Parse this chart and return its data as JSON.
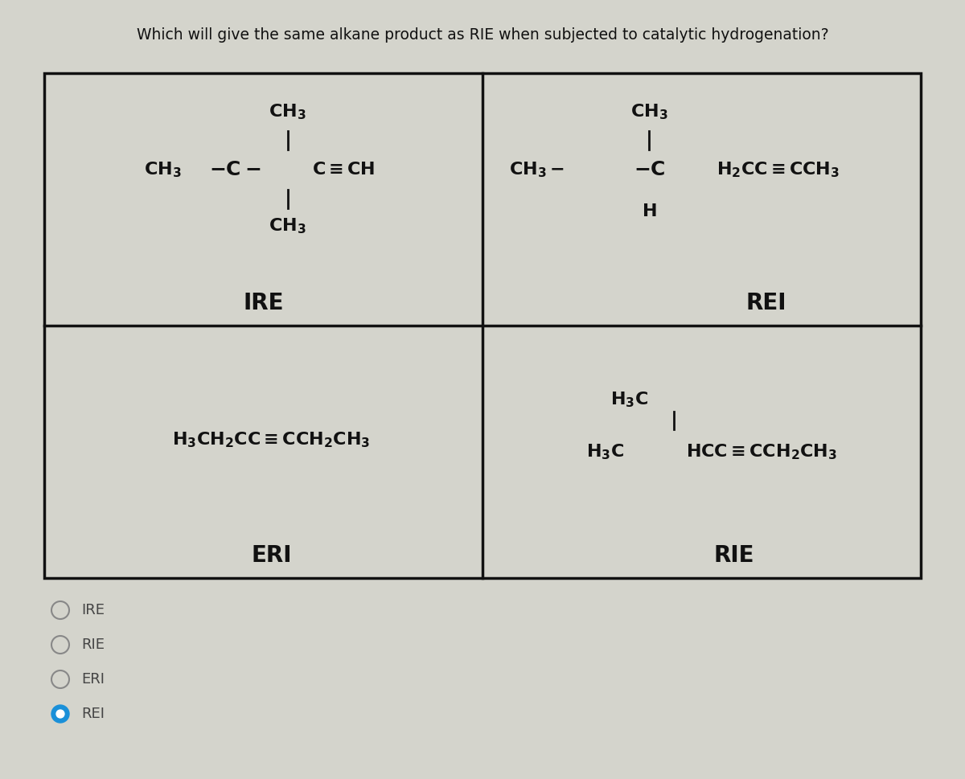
{
  "title": "Which will give the same alkane product as RIE when subjected to catalytic hydrogenation?",
  "title_fontsize": 13.5,
  "title_color": "#222222",
  "bg_color": "#d4d4cc",
  "box_color": "#111111",
  "text_color": "#111111",
  "label_fontsize": 20,
  "formula_fontsize": 16,
  "radio_options": [
    "IRE",
    "RIE",
    "ERI",
    "REI"
  ],
  "radio_selected": 3,
  "radio_fontsize": 13
}
